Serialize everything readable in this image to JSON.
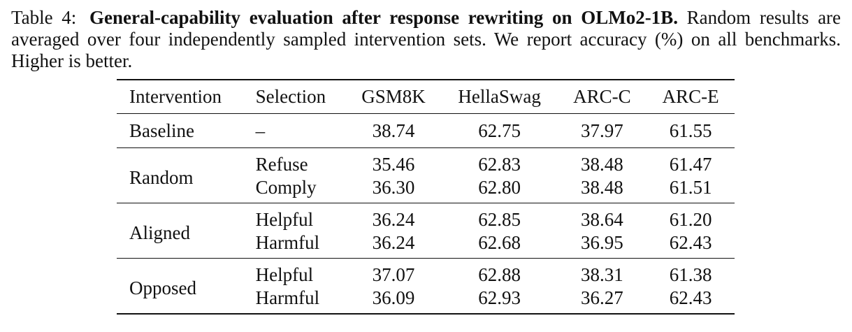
{
  "caption": {
    "label": "Table 4:",
    "bold": "General-capability evaluation after response rewriting on OLMo2-1B.",
    "text": "Random results are averaged over four independently sampled intervention sets. We report accuracy (%) on all benchmarks. Higher is better."
  },
  "table": {
    "headers": [
      "Intervention",
      "Selection",
      "GSM8K",
      "HellaSwag",
      "ARC-C",
      "ARC-E"
    ],
    "baseline": {
      "intervention": "Baseline",
      "selection": "–",
      "values": [
        "38.74",
        "62.75",
        "37.97",
        "61.55"
      ]
    },
    "groups": [
      {
        "intervention": "Random",
        "rows": [
          {
            "selection": "Refuse",
            "values": [
              "35.46",
              "62.83",
              "38.48",
              "61.47"
            ]
          },
          {
            "selection": "Comply",
            "values": [
              "36.30",
              "62.80",
              "38.48",
              "61.51"
            ]
          }
        ]
      },
      {
        "intervention": "Aligned",
        "rows": [
          {
            "selection": "Helpful",
            "values": [
              "36.24",
              "62.85",
              "38.64",
              "61.20"
            ]
          },
          {
            "selection": "Harmful",
            "values": [
              "36.24",
              "62.68",
              "36.95",
              "62.43"
            ]
          }
        ]
      },
      {
        "intervention": "Opposed",
        "rows": [
          {
            "selection": "Helpful",
            "values": [
              "37.07",
              "62.88",
              "38.31",
              "61.38"
            ]
          },
          {
            "selection": "Harmful",
            "values": [
              "36.09",
              "62.93",
              "36.27",
              "62.43"
            ]
          }
        ]
      }
    ]
  }
}
